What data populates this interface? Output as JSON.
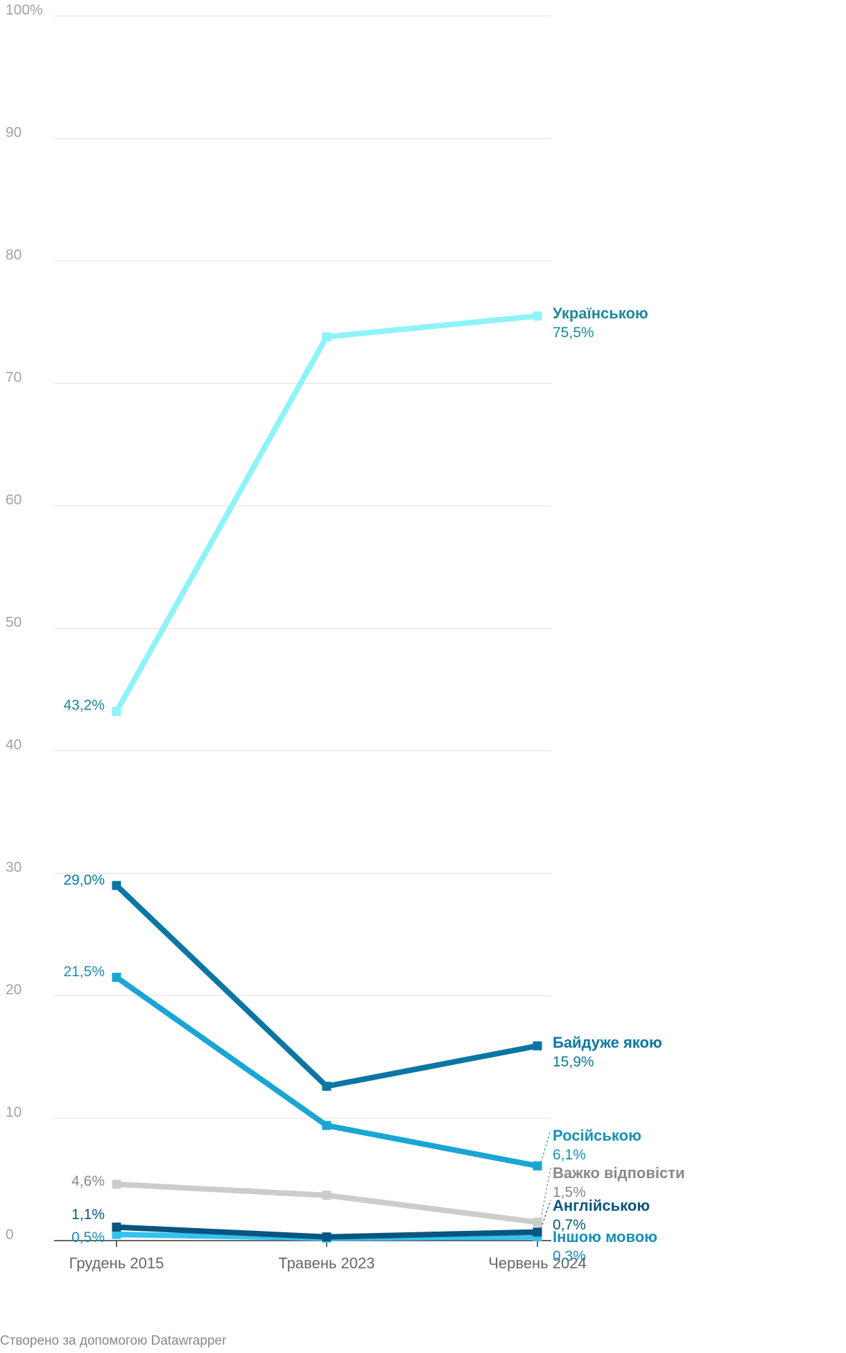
{
  "credit": "Створено за допомогою Datawrapper",
  "chart_data": {
    "type": "line",
    "x": [
      "Грудень 2015",
      "Травень 2023",
      "Червень 2024"
    ],
    "ylim": [
      0,
      100
    ],
    "yticks": [
      0,
      10,
      20,
      30,
      40,
      50,
      60,
      70,
      80,
      90,
      100
    ],
    "ytick_labels": [
      "0",
      "10",
      "20",
      "30",
      "40",
      "50",
      "60",
      "70",
      "80",
      "90",
      "100%"
    ],
    "grid": true,
    "series": [
      {
        "name": "Українською",
        "values": [
          43.2,
          73.8,
          75.5
        ],
        "color": "#8ef3fb",
        "label_color": "#1b8a9a",
        "start_label": "43,2%",
        "end_label": "75,5%"
      },
      {
        "name": "Байдуже якою",
        "values": [
          29.0,
          12.6,
          15.9
        ],
        "color": "#0a76a4",
        "label_color": "#0a76a4",
        "start_label": "29,0%",
        "end_label": "15,9%"
      },
      {
        "name": "Російською",
        "values": [
          21.5,
          9.4,
          6.1
        ],
        "color": "#1aa5d4",
        "label_color": "#1690b8",
        "start_label": "21,5%",
        "end_label": "6,1%"
      },
      {
        "name": "Важко відповісти",
        "values": [
          4.6,
          3.7,
          1.5
        ],
        "color": "#cccccc",
        "label_color": "#888888",
        "start_label": "4,6%",
        "end_label": "1,5%"
      },
      {
        "name": "Англійською",
        "values": [
          1.1,
          0.3,
          0.7
        ],
        "color": "#085580",
        "label_color": "#085580",
        "start_label": "1,1%",
        "end_label": "0,7%"
      },
      {
        "name": "Іншою мовою",
        "values": [
          0.5,
          0.2,
          0.3
        ],
        "color": "#36c2ef",
        "label_color": "#1690b8",
        "start_label": "0,5%",
        "end_label": "0,3%"
      }
    ]
  }
}
